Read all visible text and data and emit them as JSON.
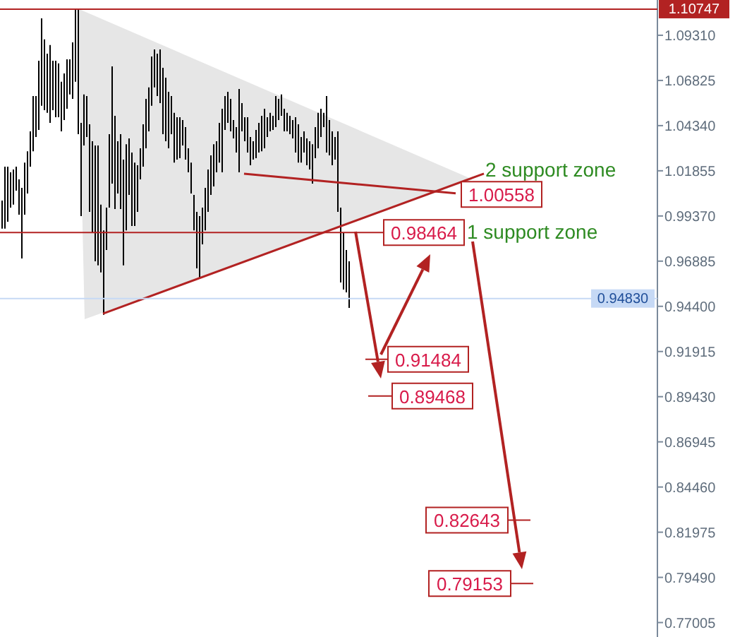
{
  "chart_data": {
    "type": "bar",
    "categories": [
      null,
      null,
      null,
      null,
      null,
      null,
      null,
      null,
      null,
      null,
      null,
      null,
      null,
      null,
      null,
      null,
      null,
      null,
      null,
      null,
      null,
      null,
      null,
      null,
      null,
      null,
      null,
      null,
      null,
      null,
      null,
      null,
      null,
      null,
      null,
      null,
      null,
      null,
      null,
      null,
      null,
      null,
      null,
      null,
      null,
      null,
      null,
      null,
      null,
      null,
      null,
      null,
      null,
      null,
      null,
      null,
      null,
      null,
      null,
      null,
      null,
      null,
      null,
      null,
      null,
      null,
      null,
      null,
      null,
      null,
      null,
      null,
      null,
      null,
      null,
      null,
      null,
      null,
      null,
      null,
      null,
      null,
      null,
      null,
      null,
      null,
      null,
      null,
      null,
      null,
      null,
      null,
      null,
      null,
      null,
      null,
      null,
      null,
      null,
      null,
      null,
      null,
      null,
      null,
      null,
      null,
      null,
      null,
      null,
      null,
      null,
      null,
      null,
      null,
      null,
      null,
      null,
      null,
      null,
      null,
      null,
      null,
      null,
      null,
      null,
      null,
      null,
      null,
      null,
      null,
      null,
      null,
      null,
      null,
      null,
      null,
      null,
      null,
      null,
      null,
      null,
      null,
      null,
      null,
      null,
      null,
      null,
      null,
      null,
      null,
      null,
      null,
      null,
      null,
      null,
      null,
      null,
      null,
      null,
      null,
      null,
      null,
      null,
      null,
      null,
      null,
      null,
      null,
      null,
      null,
      null,
      null,
      null,
      null,
      null,
      null,
      null,
      null,
      null,
      null,
      null,
      null,
      null,
      null,
      null,
      null,
      null,
      null,
      null,
      null,
      null,
      null,
      null,
      null,
      null,
      null,
      null,
      null,
      null,
      null,
      null,
      null,
      null,
      null,
      null,
      null,
      null,
      null,
      null,
      null,
      null,
      null,
      null,
      null,
      null,
      null,
      null,
      null,
      null,
      null,
      null,
      null,
      null,
      null,
      null,
      null,
      null,
      null,
      null,
      null,
      null,
      null,
      null
    ],
    "series": [
      {
        "color": "#000000",
        "base": [
          0.9867,
          0.9867,
          0.9905,
          0.9983,
          0.9999,
          1.0076,
          0.9944,
          0.9703,
          0.9944,
          1.0061,
          1.0208,
          1.0293,
          1.0371,
          1.041,
          1.0543,
          1.0519,
          1.0504,
          1.0449,
          1.0519,
          1.048,
          1.048,
          1.0402,
          1.0465,
          1.0527,
          1.0605,
          1.0581,
          1.0675,
          1.0387,
          0.9936,
          1.0325,
          1.0371,
          0.996,
          0.9843,
          0.9688,
          0.9665,
          0.9626,
          0.9393,
          0.975,
          0.9983,
          1.0115,
          0.9975,
          1.0061,
          0.9975,
          0.9665,
          0.9858,
          1.0053,
          0.9882,
          0.9882,
          0.996,
          1.0138,
          1.0208,
          1.0309,
          1.0402,
          1.0543,
          1.0644,
          1.0597,
          1.0558,
          1.0387,
          1.0348,
          1.0309,
          1.0387,
          1.0231,
          1.0247,
          1.0255,
          1.0325,
          1.0247,
          1.0177,
          1.0061,
          0.9858,
          0.9649,
          0.9595,
          0.9781,
          0.9858,
          0.996,
          1.0053,
          1.0099,
          1.0177,
          1.0231,
          1.0177,
          1.041,
          1.0449,
          1.0402,
          1.0364,
          1.0286,
          1.0177,
          1.0402,
          1.0348,
          1.0286,
          1.0216,
          1.0247,
          1.0255,
          1.0286,
          1.0293,
          1.0309,
          1.0371,
          1.0402,
          1.041,
          1.0426,
          1.0465,
          1.0488,
          1.0402,
          1.0402,
          1.0387,
          1.0364,
          1.0286,
          1.0231,
          1.0231,
          1.0286,
          1.0216,
          1.0193,
          1.0115,
          1.0255,
          1.0309,
          1.0371,
          1.0426,
          1.0286,
          1.027,
          1.0216,
          1.0247,
          0.996,
          0.9571,
          0.9532,
          0.9517,
          0.9431,
          null,
          null,
          null,
          null,
          null,
          null,
          null,
          null,
          null,
          null,
          null,
          null,
          null,
          null,
          null,
          null,
          null,
          null,
          null,
          null,
          null,
          null,
          null,
          null,
          null,
          null,
          null,
          null,
          null,
          null,
          null,
          null,
          null,
          null,
          null,
          null,
          null,
          null,
          null,
          null,
          null,
          null,
          null,
          null,
          null,
          null,
          null,
          null,
          null,
          null,
          null,
          null,
          null,
          null,
          null,
          null,
          null,
          null,
          null,
          null,
          null,
          null,
          null,
          null,
          null,
          null,
          null,
          null,
          null,
          null,
          null,
          null,
          null,
          null,
          null,
          null,
          null,
          null,
          null,
          null,
          null,
          null,
          null,
          null,
          null,
          null,
          null,
          null,
          null,
          null,
          null,
          null,
          null,
          null,
          null,
          null,
          null,
          null,
          null,
          null,
          null,
          null,
          null,
          null,
          null,
          null,
          null,
          null,
          null
        ],
        "values": [
          0.0155,
          0.0341,
          0.0303,
          0.0194,
          0.0194,
          0.0132,
          0.0194,
          0.0389,
          0.0287,
          0.0232,
          0.0194,
          0.0304,
          0.0226,
          0.0381,
          0.0481,
          0.0389,
          0.0326,
          0.0428,
          0.0272,
          0.0311,
          0.0296,
          0.0273,
          0.0256,
          0.0272,
          0.0194,
          0.0311,
          0.04,
          0.0684,
          0.0513,
          0.028,
          0.0226,
          0.0481,
          0.0505,
          0.0637,
          0.066,
          0.0373,
          0.0465,
          0.0233,
          0.0404,
          0.0645,
          0.0513,
          0.0287,
          0.0412,
          0.0582,
          0.0474,
          0.0311,
          0.0404,
          0.0349,
          0.0256,
          0.0171,
          0.0233,
          0.0272,
          0.0242,
          0.0271,
          0.0209,
          0.0233,
          0.0295,
          0.0365,
          0.035,
          0.0311,
          0.021,
          0.0273,
          0.0233,
          0.0225,
          0.014,
          0.0179,
          0.0132,
          0.017,
          0.0195,
          0.0311,
          0.0341,
          0.0202,
          0.0234,
          0.0233,
          0.0217,
          0.0233,
          0.0171,
          0.0218,
          0.035,
          0.0187,
          0.0171,
          0.0179,
          0.0101,
          0.014,
          0.0459,
          0.0156,
          0.0132,
          0.0194,
          0.0155,
          0.0101,
          0.0155,
          0.0163,
          0.0195,
          0.0218,
          0.0109,
          0.0102,
          0.0078,
          0.0171,
          0.0116,
          0.0117,
          0.0125,
          0.0102,
          0.0101,
          0.0101,
          0.0194,
          0.021,
          0.014,
          0.0116,
          0.0148,
          0.0155,
          0.0217,
          0.0171,
          0.0195,
          0.0156,
          0.0078,
          0.0311,
          0.0195,
          0.0186,
          0.0124,
          0.0442,
          0.0412,
          0.0311,
          0.0233,
          0.0257,
          null,
          null,
          null,
          null,
          null,
          null,
          null,
          null,
          null,
          null,
          null,
          null,
          null,
          null,
          null,
          null,
          null,
          null,
          null,
          null,
          null,
          null,
          null,
          null,
          null,
          null,
          null,
          null,
          null,
          null,
          null,
          null,
          null,
          null,
          null,
          null,
          null,
          null,
          null,
          null,
          null,
          null,
          null,
          null,
          null,
          null,
          null,
          null,
          null,
          null,
          null,
          null,
          null,
          null,
          null,
          null,
          null,
          null,
          null,
          null,
          null,
          null,
          null,
          null,
          null,
          null,
          null,
          null,
          null,
          null,
          null,
          null,
          null,
          null,
          null,
          null,
          null,
          null,
          null,
          null,
          null,
          null,
          null,
          null,
          null,
          null,
          null,
          null,
          null,
          null,
          null,
          null,
          null,
          null,
          null,
          null,
          null,
          null,
          null,
          null,
          null,
          null,
          null,
          null,
          null,
          null,
          null,
          null,
          null
        ]
      },
      {
        "type": "line",
        "color": "#b22222",
        "values": [
          null,
          null,
          null,
          null,
          null,
          null,
          null,
          null,
          null,
          null,
          null,
          null,
          null,
          null,
          null,
          null,
          null,
          null,
          null,
          null,
          null,
          null,
          null,
          null,
          null,
          null,
          null,
          null,
          null,
          null,
          null,
          null,
          null,
          null,
          null,
          null,
          0.94,
          null,
          null,
          null,
          null,
          null,
          null,
          null,
          null,
          null,
          null,
          null,
          null,
          null,
          null,
          null,
          null,
          null,
          null,
          null,
          null,
          null,
          null,
          null,
          null,
          null,
          null,
          null,
          null,
          null,
          null,
          null,
          null,
          null,
          null,
          null,
          null,
          null,
          null,
          null,
          null,
          null,
          null,
          null,
          null,
          null,
          null,
          null,
          null,
          null,
          null,
          null,
          null,
          null,
          null,
          null,
          null,
          null,
          null,
          null,
          null,
          null,
          null,
          null,
          null,
          null,
          null,
          null,
          null,
          null,
          null,
          null,
          null,
          null,
          null,
          null,
          null,
          null,
          null,
          null,
          null,
          null,
          null,
          null,
          null,
          null,
          null,
          null,
          null,
          null,
          null,
          null,
          null,
          null,
          null,
          null,
          null,
          null,
          null,
          null,
          null,
          null,
          null,
          null,
          null,
          null,
          null,
          null,
          null,
          null,
          null,
          null,
          null,
          null,
          null,
          null,
          null,
          null,
          null,
          null,
          null,
          null,
          null,
          null,
          null,
          null,
          null,
          null,
          null,
          null,
          null,
          null,
          null,
          null,
          null,
          1.017,
          null,
          null,
          null,
          null,
          null,
          null,
          null,
          null,
          null,
          null,
          null,
          null,
          null,
          null,
          null,
          null,
          null,
          null,
          null,
          null,
          null,
          null,
          null,
          null,
          null,
          null,
          null,
          null,
          null,
          null,
          null,
          null,
          null,
          null,
          null,
          null,
          null,
          null,
          null,
          null,
          null,
          null,
          null,
          null,
          null,
          null,
          null,
          null,
          null,
          null,
          null,
          null,
          null,
          null,
          null,
          null,
          null,
          null,
          null,
          null,
          null
        ]
      },
      {
        "type": "line",
        "color": "#b22222",
        "values": [
          null,
          null,
          null,
          null,
          null,
          null,
          null,
          null,
          null,
          null,
          null,
          null,
          null,
          null,
          null,
          null,
          null,
          null,
          null,
          null,
          null,
          null,
          null,
          null,
          null,
          null,
          null,
          null,
          null,
          null,
          null,
          null,
          null,
          null,
          null,
          null,
          null,
          null,
          null,
          null,
          null,
          null,
          null,
          null,
          null,
          null,
          null,
          null,
          null,
          null,
          null,
          null,
          null,
          null,
          null,
          null,
          null,
          null,
          null,
          null,
          null,
          null,
          null,
          null,
          null,
          null,
          null,
          null,
          null,
          null,
          null,
          null,
          null,
          null,
          null,
          null,
          null,
          null,
          null,
          null,
          null,
          null,
          null,
          null,
          null,
          null,
          1.0169,
          null,
          null,
          null,
          null,
          null,
          null,
          null,
          null,
          null,
          null,
          null,
          null,
          null,
          null,
          null,
          null,
          null,
          null,
          null,
          null,
          null,
          null,
          null,
          null,
          null,
          null,
          null,
          null,
          null,
          null,
          null,
          null,
          null,
          null,
          null,
          null,
          null,
          null,
          null,
          null,
          null,
          null,
          null,
          null,
          null,
          null,
          null,
          null,
          null,
          null,
          null,
          null,
          null,
          null,
          null,
          null,
          null,
          null,
          null,
          null,
          null,
          null,
          null,
          null,
          null,
          null,
          null,
          null,
          null,
          null,
          null,
          null,
          null,
          null,
          1.0062,
          null,
          null,
          null,
          null,
          null,
          null,
          null,
          null,
          null,
          null,
          null,
          null,
          null,
          null,
          null,
          null,
          null,
          null,
          null,
          null,
          null,
          null,
          null,
          null,
          null,
          null,
          null,
          null,
          null,
          null,
          null,
          null,
          null,
          null,
          null,
          null,
          null,
          null,
          null,
          null,
          null,
          null,
          null,
          null,
          null,
          null,
          null,
          null,
          null,
          null,
          null,
          null,
          null,
          null,
          null,
          null,
          null,
          null,
          null,
          null,
          null,
          null,
          null,
          null,
          null,
          null,
          null,
          null,
          null,
          null,
          null
        ]
      }
    ],
    "ylim": [
      0.7621,
      1.1125
    ],
    "yticks": [
      {
        "value": 1.0931,
        "label": "1.09310"
      },
      1.06825,
      {
        "value": 1.0434,
        "label": "1.04340"
      },
      1.01855,
      {
        "value": 0.9937,
        "label": "0.99370"
      },
      0.96885,
      {
        "value": 0.944,
        "label": "0.94400"
      },
      0.91915,
      {
        "value": 0.8943,
        "label": "0.89430"
      },
      0.86945,
      {
        "value": 0.8446,
        "label": "0.84460"
      },
      0.81975,
      {
        "value": 0.7949,
        "label": "0.79490"
      },
      0.77005
    ],
    "tick_labels": "y",
    "marker": "none",
    "line_style": "solid",
    "ref_lines": [
      {
        "axis": "y",
        "value": 1.10747,
        "label": "1.10747",
        "color": "#b22222"
      },
      {
        "axis": "y",
        "value": 0.98464,
        "label": "0.98464",
        "color": "#b22222"
      },
      {
        "axis": "y",
        "value": 0.9483,
        "label": "0.94830",
        "color": "#c6d9f5"
      }
    ],
    "annotations": [
      "1.00558",
      "0.91484",
      "0.89468",
      "0.82643",
      "0.79153",
      "2 support zone",
      "1 support zone"
    ]
  }
}
